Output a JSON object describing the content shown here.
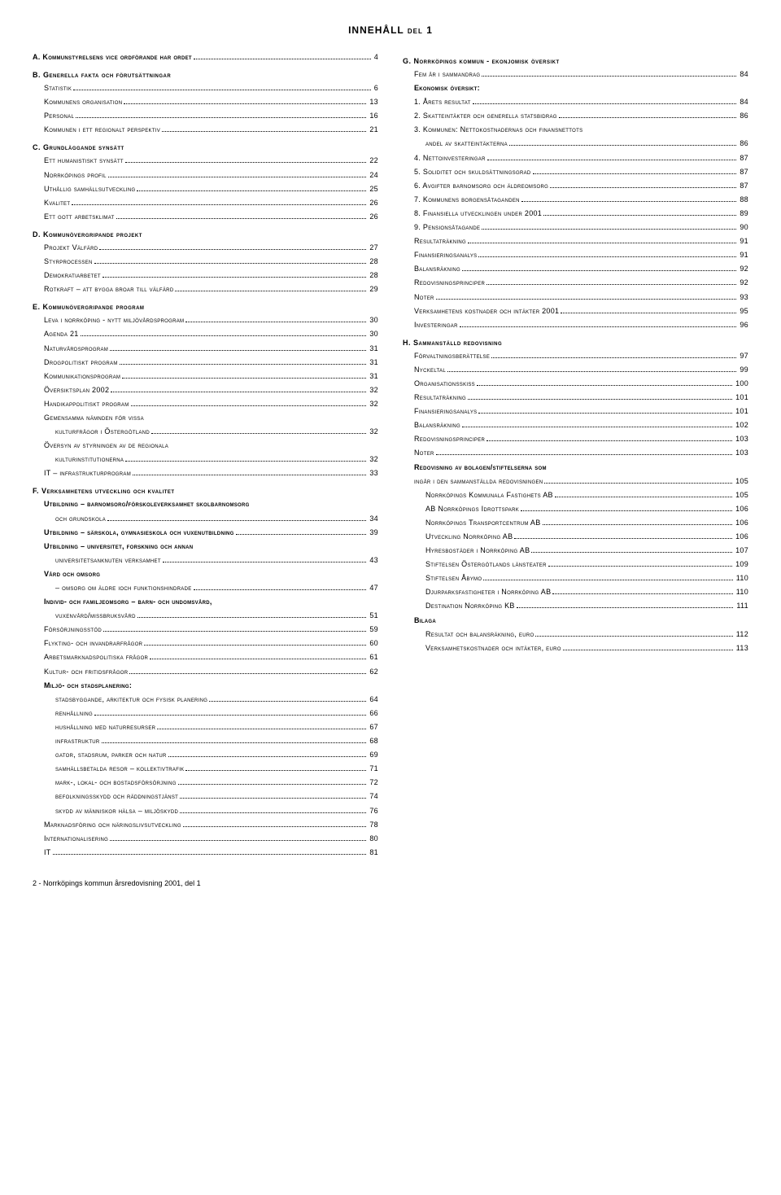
{
  "title": "INNEHÅLL del 1",
  "footer": "2 - Norrköpings kommun årsredovisning 2001, del 1",
  "left": [
    {
      "type": "row",
      "label": "A. Kommunstyrelsens vice ordförande har ordet",
      "page": "4",
      "bold": true
    },
    {
      "type": "head",
      "label": "B. Generella fakta och förutsättningar"
    },
    {
      "type": "row",
      "label": "Statistik",
      "page": "6",
      "indent": 1
    },
    {
      "type": "row",
      "label": "Kommunens organisation",
      "page": "13",
      "indent": 1
    },
    {
      "type": "row",
      "label": "Personal",
      "page": "16",
      "indent": 1
    },
    {
      "type": "row",
      "label": "Kommunen i ett regionalt perspektiv",
      "page": "21",
      "indent": 1
    },
    {
      "type": "head",
      "label": "C. Grundläggande synsätt"
    },
    {
      "type": "row",
      "label": "Ett humanistiskt synsätt",
      "page": "22",
      "indent": 1
    },
    {
      "type": "row",
      "label": "Norrköpings profil",
      "page": "24",
      "indent": 1
    },
    {
      "type": "row",
      "label": "Uthållig samhällsutveckling",
      "page": "25",
      "indent": 1
    },
    {
      "type": "row",
      "label": "Kvalitet",
      "page": "26",
      "indent": 1
    },
    {
      "type": "row",
      "label": "Ett gott arbetsklimat",
      "page": "26",
      "indent": 1
    },
    {
      "type": "head",
      "label": "D. Kommunövergripande projekt"
    },
    {
      "type": "row",
      "label": "Projekt Välfärd",
      "page": "27",
      "indent": 1
    },
    {
      "type": "row",
      "label": "Styrprocessen",
      "page": "28",
      "indent": 1
    },
    {
      "type": "row",
      "label": "Demokratiarbetet",
      "page": "28",
      "indent": 1
    },
    {
      "type": "row",
      "label": "Rotkraft – att bygga broar till välfärd",
      "page": "29",
      "indent": 1
    },
    {
      "type": "head",
      "label": "E. Kommunövergripande program"
    },
    {
      "type": "row",
      "label": "Leva i norrköping - nytt miljövårdsprogram",
      "page": "30",
      "indent": 1
    },
    {
      "type": "row",
      "label": "Agenda 21",
      "page": "30",
      "indent": 1
    },
    {
      "type": "row",
      "label": "Naturvårdsprogram",
      "page": "31",
      "indent": 1
    },
    {
      "type": "row",
      "label": "Drogpolitiskt program",
      "page": "31",
      "indent": 1
    },
    {
      "type": "row",
      "label": "Kommunikationsprogram",
      "page": "31",
      "indent": 1
    },
    {
      "type": "row",
      "label": "Översiktsplan 2002",
      "page": "32",
      "indent": 1
    },
    {
      "type": "row",
      "label": "Handikappolitiskt program",
      "page": "32",
      "indent": 1
    },
    {
      "type": "row",
      "label": "Gemensamma nämnden för vissa",
      "indent": 1,
      "nolead": true
    },
    {
      "type": "row",
      "label": "kulturfrågor i Östergötland",
      "page": "32",
      "indent": 2
    },
    {
      "type": "row",
      "label": "Översyn av styrningen av de regionala",
      "indent": 1,
      "nolead": true
    },
    {
      "type": "row",
      "label": "kulturinstitutionerna",
      "page": "32",
      "indent": 2
    },
    {
      "type": "row",
      "label": "IT – infrastrukturprogram",
      "page": "33",
      "indent": 1
    },
    {
      "type": "head",
      "label": "F. Verksamhetens utveckling och kvalitet"
    },
    {
      "type": "row",
      "label": "Utbildning – barnomsorg/förskoleverksamhet skolbarnomsorg",
      "indent": 1,
      "nolead": true,
      "bold": true
    },
    {
      "type": "row",
      "label": "och grundskola",
      "page": "34",
      "indent": 2
    },
    {
      "type": "row",
      "label": "Utbildning – särskola, gymnasieskola och vuxenutbildning",
      "page": "39",
      "indent": 1,
      "bold": true
    },
    {
      "type": "row",
      "label": "Utbildning – universitet, forskning och annan",
      "indent": 1,
      "nolead": true,
      "bold": true
    },
    {
      "type": "row",
      "label": "universitetsanknuten verksamhet",
      "page": "43",
      "indent": 2
    },
    {
      "type": "subheadplain",
      "label": "Vård och omsorg",
      "indent": 1
    },
    {
      "type": "row",
      "label": "– omsorg om äldre ioch funktionshindrade",
      "page": "47",
      "indent": 2
    },
    {
      "type": "row",
      "label": "Individ- och familjeomsorg – barn- och undomsvård,",
      "indent": 1,
      "nolead": true,
      "bold": true
    },
    {
      "type": "row",
      "label": "vuxenvård/missbruksvård",
      "page": "51",
      "indent": 2
    },
    {
      "type": "row",
      "label": "Försörjningsstöd",
      "page": "59",
      "indent": 1
    },
    {
      "type": "row",
      "label": "Flykting- och invandrarfrågor",
      "page": "60",
      "indent": 1
    },
    {
      "type": "row",
      "label": "Arbetsmarknadspolitiska frågor",
      "page": "61",
      "indent": 1
    },
    {
      "type": "row",
      "label": "Kultur- och fritidsfrågor",
      "page": "62",
      "indent": 1
    },
    {
      "type": "subheadplain",
      "label": "Miljö- och stadsplanering:",
      "indent": 1
    },
    {
      "type": "row",
      "label": "stadsbyggande, arkitektur och fysisk planering",
      "page": "64",
      "indent": 2
    },
    {
      "type": "row",
      "label": "renhållning",
      "page": "66",
      "indent": 2
    },
    {
      "type": "row",
      "label": "hushållning med naturresurser",
      "page": "67",
      "indent": 2
    },
    {
      "type": "row",
      "label": "infrastruktur",
      "page": "68",
      "indent": 2
    },
    {
      "type": "row",
      "label": "gator, stadsrum, parker och natur",
      "page": "69",
      "indent": 2
    },
    {
      "type": "row",
      "label": "samhällsbetalda resor – kollektivtrafik",
      "page": "71",
      "indent": 2
    },
    {
      "type": "row",
      "label": "mark-, lokal- och bostadsförsörjning",
      "page": "72",
      "indent": 2
    },
    {
      "type": "row",
      "label": "befolkningsskydd och räddningstjänst",
      "page": "74",
      "indent": 2
    },
    {
      "type": "row",
      "label": "skydd av människor hälsa – miljöskydd",
      "page": "76",
      "indent": 2
    },
    {
      "type": "row",
      "label": "Marknadsföring och näringslivsutveckling",
      "page": "78",
      "indent": 1
    },
    {
      "type": "row",
      "label": "Internationalisering",
      "page": "80",
      "indent": 1
    },
    {
      "type": "row",
      "label": "IT",
      "page": "81",
      "indent": 1
    }
  ],
  "right": [
    {
      "type": "head",
      "label": "G. Norrköpings kommun - ekonjomisk översikt"
    },
    {
      "type": "row",
      "label": "Fem år i sammandrag",
      "page": "84",
      "indent": 1
    },
    {
      "type": "subheadplain",
      "label": "Ekonomisk översikt:",
      "indent": 1
    },
    {
      "type": "row",
      "label": "1. Årets resultat",
      "page": "84",
      "indent": 1
    },
    {
      "type": "row",
      "label": "2. Skatteintäkter och generella statsbidrag",
      "page": "86",
      "indent": 1
    },
    {
      "type": "row",
      "label": "3. Kommunen: Nettokostnadernas och finansnettots",
      "indent": 1,
      "nolead": true
    },
    {
      "type": "row",
      "label": "andel av skatteintäkterna",
      "page": "86",
      "indent": 2
    },
    {
      "type": "row",
      "label": "4. Nettoinvesteringar",
      "page": "87",
      "indent": 1
    },
    {
      "type": "row",
      "label": "5. Soliditet och skuldsättningsgrad",
      "page": "87",
      "indent": 1
    },
    {
      "type": "row",
      "label": "6. Avgifter barnomsorg och äldreomsorg",
      "page": "87",
      "indent": 1
    },
    {
      "type": "row",
      "label": "7. Kommunens borgensåtaganden",
      "page": "88",
      "indent": 1
    },
    {
      "type": "row",
      "label": "8. Finansiella utvecklingen under 2001",
      "page": "89",
      "indent": 1
    },
    {
      "type": "row",
      "label": "9. Pensionsåtagande",
      "page": "90",
      "indent": 1
    },
    {
      "type": "row",
      "label": "Resultaträkning",
      "page": "91",
      "indent": 1
    },
    {
      "type": "row",
      "label": "Finansieringsanalys",
      "page": "91",
      "indent": 1
    },
    {
      "type": "row",
      "label": "Balansräkning",
      "page": "92",
      "indent": 1
    },
    {
      "type": "row",
      "label": "Redovisningsprinciper",
      "page": "92",
      "indent": 1
    },
    {
      "type": "row",
      "label": "Noter",
      "page": "93",
      "indent": 1
    },
    {
      "type": "row",
      "label": "Verksamhetens kostnader och intäkter 2001",
      "page": "95",
      "indent": 1
    },
    {
      "type": "row",
      "label": "Investeringar",
      "page": "96",
      "indent": 1
    },
    {
      "type": "head",
      "label": "H. Sammanställd redovisning"
    },
    {
      "type": "row",
      "label": "Förvaltningsberättelse",
      "page": "97",
      "indent": 1
    },
    {
      "type": "row",
      "label": "Nyckeltal",
      "page": "99",
      "indent": 1
    },
    {
      "type": "row",
      "label": "Organisationsskiss",
      "page": "100",
      "indent": 1
    },
    {
      "type": "row",
      "label": "Resultaträkning",
      "page": "101",
      "indent": 1
    },
    {
      "type": "row",
      "label": "Finansieringsanalys",
      "page": "101",
      "indent": 1
    },
    {
      "type": "row",
      "label": "Balansräkning",
      "page": "102",
      "indent": 1
    },
    {
      "type": "row",
      "label": "Redovisningsprinciper",
      "page": "103",
      "indent": 1
    },
    {
      "type": "row",
      "label": "Noter",
      "page": "103",
      "indent": 1
    },
    {
      "type": "row",
      "label": "Redovisning av bolagen/stiftelserna som",
      "indent": 1,
      "nolead": true,
      "bold": true
    },
    {
      "type": "row",
      "label": "ingår i den sammanställda redovisningen",
      "page": "105",
      "indent": 1
    },
    {
      "type": "row",
      "label": "Norrköpings Kommunala Fastighets AB",
      "page": "105",
      "indent": 2
    },
    {
      "type": "row",
      "label": "AB Norrköpings Idrottspark",
      "page": "106",
      "indent": 2
    },
    {
      "type": "row",
      "label": "Norrköpings Transportcentrum AB",
      "page": "106",
      "indent": 2
    },
    {
      "type": "row",
      "label": "Utveckling Norrköping AB",
      "page": "106",
      "indent": 2
    },
    {
      "type": "row",
      "label": "Hyresbostäder i Norrköping AB",
      "page": "107",
      "indent": 2
    },
    {
      "type": "row",
      "label": "Stiftelsen Östergötlands länsteater",
      "page": "109",
      "indent": 2
    },
    {
      "type": "row",
      "label": "Stiftelsen Åbymo",
      "page": "110",
      "indent": 2
    },
    {
      "type": "row",
      "label": "Djurparksfastigheter i Norrköping AB",
      "page": "110",
      "indent": 2
    },
    {
      "type": "row",
      "label": "Destination Norrköping KB",
      "page": "111",
      "indent": 2
    },
    {
      "type": "subheadplain",
      "label": "Bilaga",
      "indent": 1
    },
    {
      "type": "row",
      "label": "Resultat och balansräkning, euro",
      "page": "112",
      "indent": 2
    },
    {
      "type": "row",
      "label": "Verksamhetskostnader och intäkter, euro",
      "page": "113",
      "indent": 2
    }
  ]
}
